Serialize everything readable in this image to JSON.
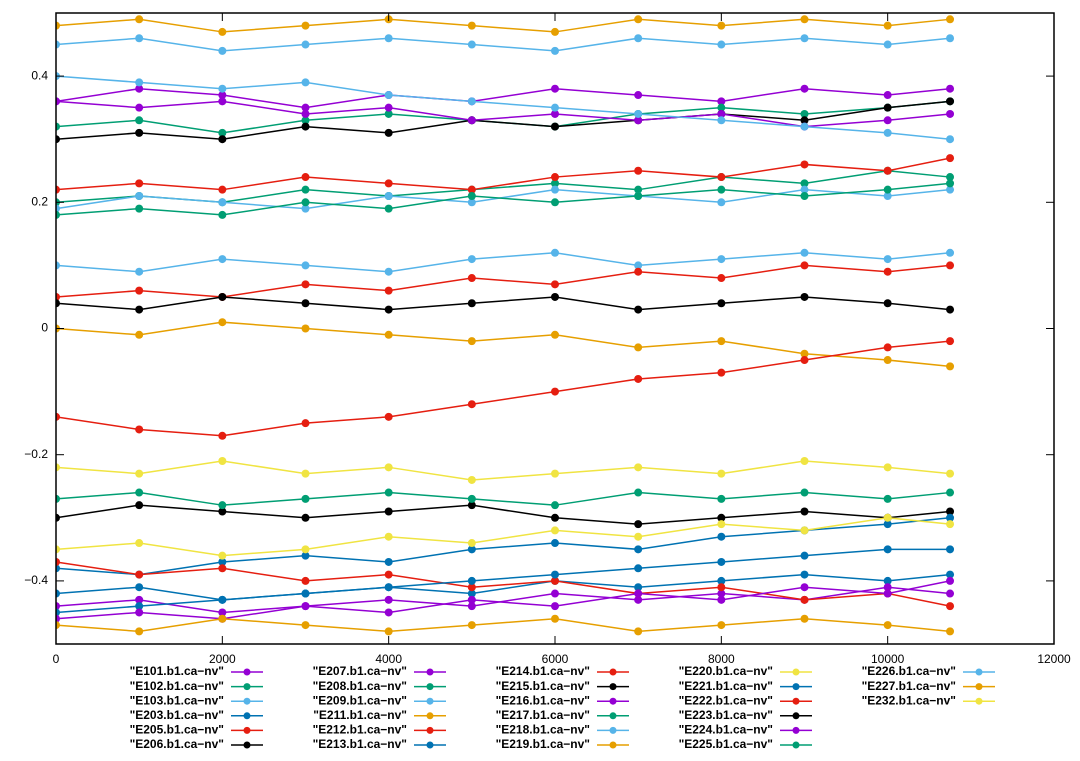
{
  "chart_data": {
    "type": "line",
    "legend": "below",
    "x": [
      0,
      1000,
      2000,
      3000,
      4000,
      5000,
      6000,
      7000,
      8000,
      9000,
      10000,
      10750
    ],
    "xlim": [
      0,
      12000
    ],
    "xticks": [
      0,
      2000,
      4000,
      6000,
      8000,
      10000,
      12000
    ],
    "ylim": [
      -0.5,
      0.5
    ],
    "yticks": [
      {
        "value": -0.4,
        "label": "−0.4"
      },
      {
        "value": -0.2,
        "label": "−0.2"
      },
      0,
      0.2,
      0.4
    ],
    "series": [
      {
        "name": "\"E101.b1.ca−nv\"",
        "color": "#9400d3",
        "values": [
          0.36,
          0.38,
          0.37,
          0.35,
          0.37,
          0.36,
          0.38,
          0.37,
          0.36,
          0.38,
          0.37,
          0.38
        ]
      },
      {
        "name": "\"E102.b1.ca−nv\"",
        "color": "#009e73",
        "values": [
          0.2,
          0.21,
          0.2,
          0.22,
          0.21,
          0.22,
          0.23,
          0.22,
          0.24,
          0.23,
          0.25,
          0.24
        ]
      },
      {
        "name": "\"E103.b1.ca−nv\"",
        "color": "#56b4e9",
        "values": [
          0.45,
          0.46,
          0.44,
          0.45,
          0.46,
          0.45,
          0.44,
          0.46,
          0.45,
          0.46,
          0.45,
          0.46
        ]
      },
      {
        "name": "\"E203.b1.ca−nv\"",
        "color": "#0072b2",
        "values": [
          -0.42,
          -0.41,
          -0.43,
          -0.42,
          -0.41,
          -0.42,
          -0.4,
          -0.41,
          -0.4,
          -0.39,
          -0.4,
          -0.39
        ]
      },
      {
        "name": "\"E205.b1.ca−nv\"",
        "color": "#e51e10",
        "values": [
          0.22,
          0.23,
          0.22,
          0.24,
          0.23,
          0.22,
          0.24,
          0.25,
          0.24,
          0.26,
          0.25,
          0.27
        ]
      },
      {
        "name": "\"E206.b1.ca−nv\"",
        "color": "#000000",
        "values": [
          -0.3,
          -0.28,
          -0.29,
          -0.3,
          -0.29,
          -0.28,
          -0.3,
          -0.31,
          -0.3,
          -0.29,
          -0.3,
          -0.29
        ]
      },
      {
        "name": "\"E207.b1.ca−nv\"",
        "color": "#9400d3",
        "values": [
          -0.44,
          -0.43,
          -0.45,
          -0.44,
          -0.43,
          -0.44,
          -0.42,
          -0.43,
          -0.42,
          -0.43,
          -0.41,
          -0.42
        ]
      },
      {
        "name": "\"E208.b1.ca−nv\"",
        "color": "#009e73",
        "values": [
          0.32,
          0.33,
          0.31,
          0.33,
          0.34,
          0.33,
          0.32,
          0.34,
          0.35,
          0.34,
          0.35,
          0.36
        ]
      },
      {
        "name": "\"E209.b1.ca−nv\"",
        "color": "#56b4e9",
        "values": [
          0.1,
          0.09,
          0.11,
          0.1,
          0.09,
          0.11,
          0.12,
          0.1,
          0.11,
          0.12,
          0.11,
          0.12
        ]
      },
      {
        "name": "\"E211.b1.ca−nv\"",
        "color": "#e69f00",
        "values": [
          0.0,
          -0.01,
          0.01,
          0.0,
          -0.01,
          -0.02,
          -0.01,
          -0.03,
          -0.02,
          -0.04,
          -0.05,
          -0.06
        ]
      },
      {
        "name": "\"E212.b1.ca−nv\"",
        "color": "#e51e10",
        "values": [
          -0.14,
          -0.16,
          -0.17,
          -0.15,
          -0.14,
          -0.12,
          -0.1,
          -0.08,
          -0.07,
          -0.05,
          -0.03,
          -0.02
        ]
      },
      {
        "name": "\"E213.b1.ca−nv\"",
        "color": "#0072b2",
        "values": [
          -0.38,
          -0.39,
          -0.37,
          -0.36,
          -0.37,
          -0.35,
          -0.34,
          -0.35,
          -0.33,
          -0.32,
          -0.31,
          -0.3
        ]
      },
      {
        "name": "\"E214.b1.ca−nv\"",
        "color": "#e51e10",
        "values": [
          -0.37,
          -0.39,
          -0.38,
          -0.4,
          -0.39,
          -0.41,
          -0.4,
          -0.42,
          -0.41,
          -0.43,
          -0.42,
          -0.44
        ]
      },
      {
        "name": "\"E215.b1.ca−nv\"",
        "color": "#000000",
        "values": [
          0.3,
          0.31,
          0.3,
          0.32,
          0.31,
          0.33,
          0.32,
          0.33,
          0.34,
          0.33,
          0.35,
          0.36
        ]
      },
      {
        "name": "\"E216.b1.ca−nv\"",
        "color": "#9400d3",
        "values": [
          0.36,
          0.35,
          0.36,
          0.34,
          0.35,
          0.33,
          0.34,
          0.33,
          0.34,
          0.32,
          0.33,
          0.34
        ]
      },
      {
        "name": "\"E217.b1.ca−nv\"",
        "color": "#009e73",
        "values": [
          -0.27,
          -0.26,
          -0.28,
          -0.27,
          -0.26,
          -0.27,
          -0.28,
          -0.26,
          -0.27,
          -0.26,
          -0.27,
          -0.26
        ]
      },
      {
        "name": "\"E218.b1.ca−nv\"",
        "color": "#56b4e9",
        "values": [
          0.19,
          0.21,
          0.2,
          0.19,
          0.21,
          0.2,
          0.22,
          0.21,
          0.2,
          0.22,
          0.21,
          0.22
        ]
      },
      {
        "name": "\"E219.b1.ca−nv\"",
        "color": "#e69f00",
        "values": [
          0.48,
          0.49,
          0.47,
          0.48,
          0.49,
          0.48,
          0.47,
          0.49,
          0.48,
          0.49,
          0.48,
          0.49
        ]
      },
      {
        "name": "\"E220.b1.ca−nv\"",
        "color": "#f0e442",
        "values": [
          -0.22,
          -0.23,
          -0.21,
          -0.23,
          -0.22,
          -0.24,
          -0.23,
          -0.22,
          -0.23,
          -0.21,
          -0.22,
          -0.23
        ]
      },
      {
        "name": "\"E221.b1.ca−nv\"",
        "color": "#0072b2",
        "values": [
          -0.45,
          -0.44,
          -0.43,
          -0.42,
          -0.41,
          -0.4,
          -0.39,
          -0.38,
          -0.37,
          -0.36,
          -0.35,
          -0.35
        ]
      },
      {
        "name": "\"E222.b1.ca−nv\"",
        "color": "#e51e10",
        "values": [
          0.05,
          0.06,
          0.05,
          0.07,
          0.06,
          0.08,
          0.07,
          0.09,
          0.08,
          0.1,
          0.09,
          0.1
        ]
      },
      {
        "name": "\"E223.b1.ca−nv\"",
        "color": "#000000",
        "values": [
          0.04,
          0.03,
          0.05,
          0.04,
          0.03,
          0.04,
          0.05,
          0.03,
          0.04,
          0.05,
          0.04,
          0.03
        ]
      },
      {
        "name": "\"E224.b1.ca−nv\"",
        "color": "#9400d3",
        "values": [
          -0.46,
          -0.45,
          -0.46,
          -0.44,
          -0.45,
          -0.43,
          -0.44,
          -0.42,
          -0.43,
          -0.41,
          -0.42,
          -0.4
        ]
      },
      {
        "name": "\"E225.b1.ca−nv\"",
        "color": "#009e73",
        "values": [
          0.18,
          0.19,
          0.18,
          0.2,
          0.19,
          0.21,
          0.2,
          0.21,
          0.22,
          0.21,
          0.22,
          0.23
        ]
      },
      {
        "name": "\"E226.b1.ca−nv\"",
        "color": "#56b4e9",
        "values": [
          0.4,
          0.39,
          0.38,
          0.39,
          0.37,
          0.36,
          0.35,
          0.34,
          0.33,
          0.32,
          0.31,
          0.3
        ]
      },
      {
        "name": "\"E227.b1.ca−nv\"",
        "color": "#e69f00",
        "values": [
          -0.47,
          -0.48,
          -0.46,
          -0.47,
          -0.48,
          -0.47,
          -0.46,
          -0.48,
          -0.47,
          -0.46,
          -0.47,
          -0.48
        ]
      },
      {
        "name": "\"E232.b1.ca−nv\"",
        "color": "#f0e442",
        "values": [
          -0.35,
          -0.34,
          -0.36,
          -0.35,
          -0.33,
          -0.34,
          -0.32,
          -0.33,
          -0.31,
          -0.32,
          -0.3,
          -0.31
        ]
      }
    ]
  }
}
